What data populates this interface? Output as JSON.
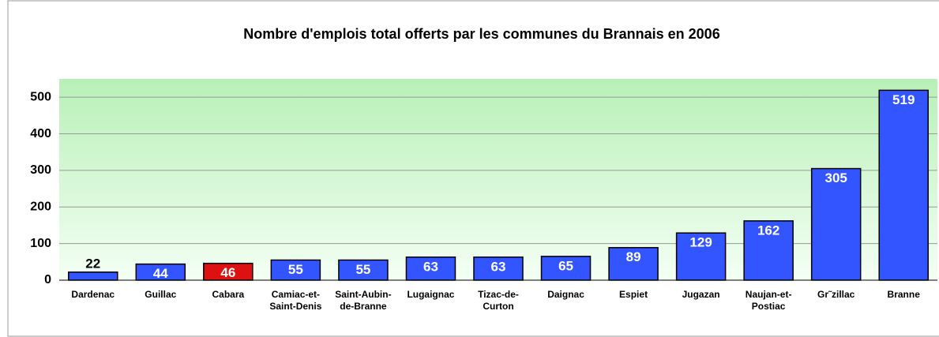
{
  "chart_data": {
    "type": "bar",
    "title": "Nombre d'emplois total offerts par les communes du Brannais en 2006",
    "categories": [
      "Dardenac",
      "Guillac",
      "Cabara",
      "Camiac-et-Saint-Denis",
      "Saint-Aubin-de-Branne",
      "Lugaignac",
      "Tizac-de-Curton",
      "Daignac",
      "Espiet",
      "Jugazan",
      "Naujan-et-Postiac",
      "Gr˜zillac",
      "Branne"
    ],
    "values": [
      22,
      44,
      46,
      55,
      55,
      63,
      63,
      65,
      89,
      129,
      162,
      305,
      519
    ],
    "colors": [
      "#3355ff",
      "#3355ff",
      "#dd1111",
      "#3355ff",
      "#3355ff",
      "#3355ff",
      "#3355ff",
      "#3355ff",
      "#3355ff",
      "#3355ff",
      "#3355ff",
      "#3355ff",
      "#3355ff"
    ],
    "ylim": [
      0,
      550
    ],
    "yticks": [
      0,
      100,
      200,
      300,
      400,
      500
    ],
    "grid": true
  }
}
